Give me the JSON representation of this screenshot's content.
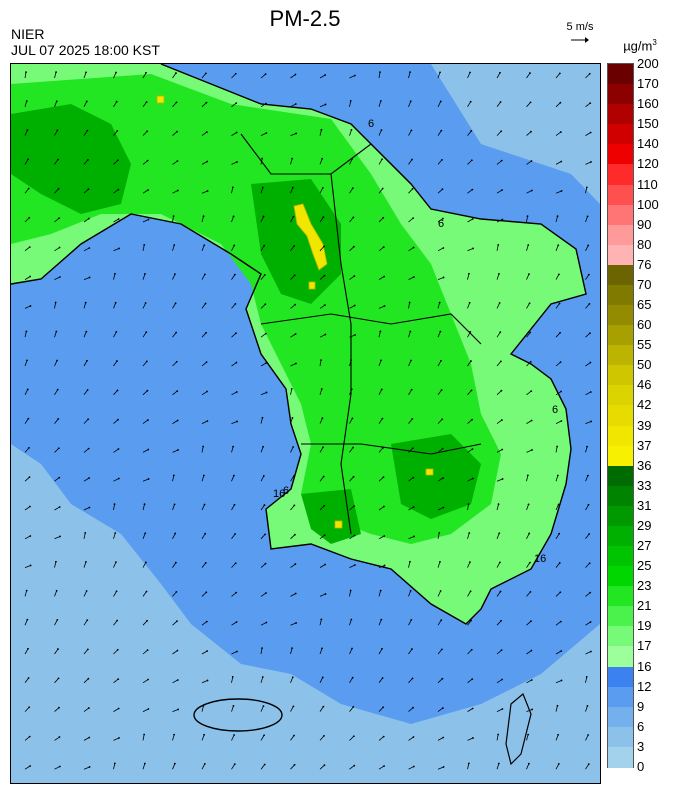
{
  "header": {
    "title": "PM-2.5",
    "agency": "NIER",
    "timestamp": "JUL 07 2025 18:00 KST",
    "scale_label": "5 m/s",
    "unit_main": "µg/m",
    "unit_sup": "3"
  },
  "legend": {
    "ticks": [
      "200",
      "170",
      "160",
      "150",
      "140",
      "120",
      "110",
      "100",
      "90",
      "80",
      "76",
      "70",
      "65",
      "60",
      "55",
      "50",
      "46",
      "42",
      "39",
      "37",
      "36",
      "33",
      "31",
      "29",
      "27",
      "25",
      "23",
      "21",
      "19",
      "17",
      "16",
      "12",
      "9",
      "6",
      "3",
      "0"
    ],
    "colors": [
      "#6b0000",
      "#8c0000",
      "#b00000",
      "#d00000",
      "#ee0000",
      "#ff2a2a",
      "#ff5050",
      "#ff7575",
      "#ff9a9a",
      "#ffb3b3",
      "#6b6400",
      "#807a00",
      "#948c00",
      "#a8a000",
      "#bcb400",
      "#cfc600",
      "#dcd400",
      "#e6dc00",
      "#f0e600",
      "#f7f000",
      "#006b00",
      "#008400",
      "#009a00",
      "#00b000",
      "#00c400",
      "#00d600",
      "#22e622",
      "#4cf24c",
      "#77fa77",
      "#9cff9c",
      "#3b82f0",
      "#5a9cf0",
      "#74b0ec",
      "#8cc2ea",
      "#a2d2ec"
    ]
  },
  "map": {
    "background": "#8cc2ea",
    "sea_near": "#5a9cf0",
    "land_colors": {
      "low": "#77fa77",
      "mid": "#22e622",
      "high": "#00b000",
      "hot": "#f0e600",
      "hot_edge": "#bcb400"
    },
    "contour_labels": [
      "6",
      "6",
      "6",
      "16",
      "16",
      "6"
    ]
  }
}
